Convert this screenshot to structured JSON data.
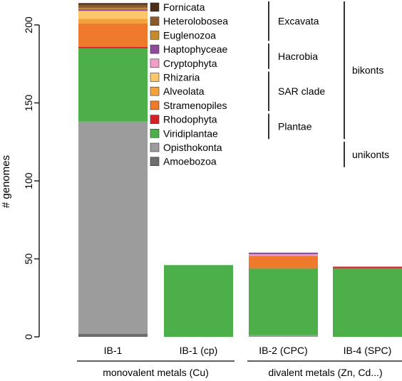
{
  "chart_data": {
    "type": "bar",
    "stacked": true,
    "ylabel": "# genomes",
    "xlabel": "",
    "ylim": [
      0,
      215
    ],
    "yticks": [
      0,
      50,
      100,
      150,
      200
    ],
    "categories": [
      "IB-1",
      "IB-1 (cp)",
      "IB-2 (CPC)",
      "IB-4 (SPC)"
    ],
    "groups": [
      {
        "label": "monovalent metals (Cu)",
        "categories": [
          "IB-1",
          "IB-1 (cp)"
        ]
      },
      {
        "label": "divalent metals (Zn, Cd...)",
        "categories": [
          "IB-2 (CPC)",
          "IB-4 (SPC)"
        ]
      }
    ],
    "series": [
      {
        "name": "Amoebozoa",
        "color": "#6d6d6d",
        "values": [
          2,
          0,
          0,
          0
        ]
      },
      {
        "name": "Opisthokonta",
        "color": "#9c9c9c",
        "values": [
          136,
          0,
          1,
          0
        ]
      },
      {
        "name": "Viridiplantae",
        "color": "#4caf4a",
        "values": [
          47,
          46,
          43,
          44
        ]
      },
      {
        "name": "Rhodophyta",
        "color": "#d62027",
        "values": [
          1,
          0,
          0,
          1
        ]
      },
      {
        "name": "Stramenopiles",
        "color": "#ef7a2b",
        "values": [
          15,
          0,
          8,
          0
        ]
      },
      {
        "name": "Alveolata",
        "color": "#f5a23a",
        "values": [
          3,
          0,
          0,
          0
        ]
      },
      {
        "name": "Rhizaria",
        "color": "#fcc66a",
        "values": [
          5,
          0,
          0,
          0
        ]
      },
      {
        "name": "Cryptophyta",
        "color": "#f39ec6",
        "values": [
          0,
          0,
          1,
          0
        ]
      },
      {
        "name": "Haptophyceae",
        "color": "#8e4a9b",
        "values": [
          1,
          0,
          1,
          0
        ]
      },
      {
        "name": "Euglenozoa",
        "color": "#c48a2c",
        "values": [
          1,
          0,
          0,
          0
        ]
      },
      {
        "name": "Heterolobosea",
        "color": "#8b5a2b",
        "values": [
          2,
          0,
          0,
          0
        ]
      },
      {
        "name": "Fornicata",
        "color": "#4a2c17",
        "values": [
          1,
          0,
          0,
          0
        ]
      }
    ],
    "legend": {
      "placement": "top-center",
      "order": [
        "Fornicata",
        "Heterolobosea",
        "Euglenozoa",
        "Haptophyceae",
        "Cryptophyta",
        "Rhizaria",
        "Alveolata",
        "Stramenopiles",
        "Rhodophyta",
        "Viridiplantae",
        "Opisthokonta",
        "Amoebozoa"
      ],
      "brackets": [
        {
          "label": "Excavata",
          "members": [
            "Fornicata",
            "Heterolobosea",
            "Euglenozoa"
          ]
        },
        {
          "label": "Hacrobia",
          "members": [
            "Haptophyceae",
            "Cryptophyta"
          ]
        },
        {
          "label": "SAR clade",
          "members": [
            "Rhizaria",
            "Alveolata",
            "Stramenopiles"
          ]
        },
        {
          "label": "Plantae",
          "members": [
            "Rhodophyta",
            "Viridiplantae"
          ]
        }
      ],
      "supergroups": [
        {
          "label": "bikonts",
          "members": [
            "Fornicata",
            "Viridiplantae"
          ]
        },
        {
          "label": "unikonts",
          "members": [
            "Opisthokonta",
            "Amoebozoa"
          ]
        }
      ]
    }
  }
}
